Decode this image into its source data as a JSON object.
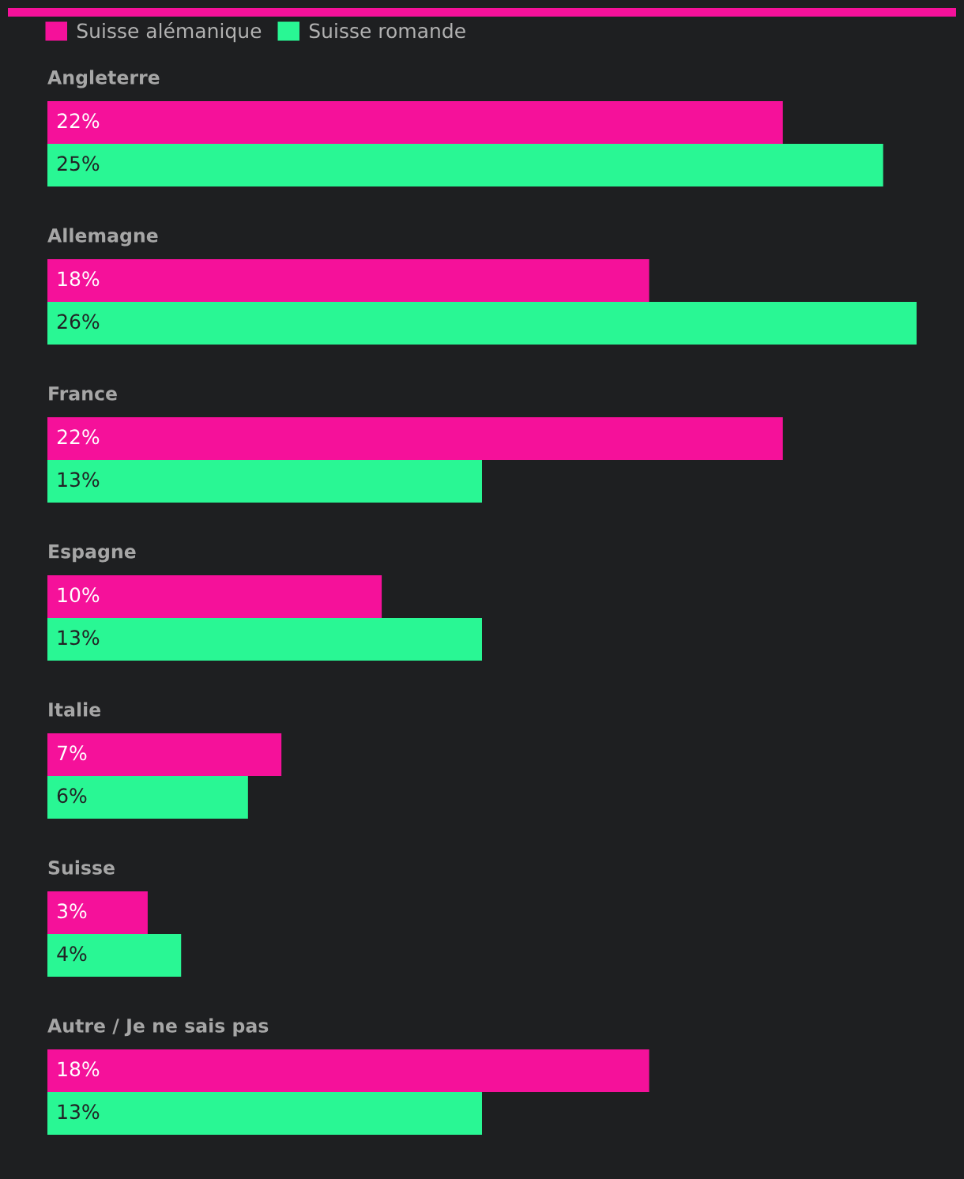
{
  "chart_data": {
    "type": "bar",
    "orientation": "horizontal",
    "categories": [
      "Angleterre",
      "Allemagne",
      "France",
      "Espagne",
      "Italie",
      "Suisse",
      "Autre / Je ne sais pas"
    ],
    "series": [
      {
        "name": "Suisse alémanique",
        "color": "#f5119a",
        "values": [
          22,
          18,
          22,
          10,
          7,
          3,
          18
        ],
        "value_labels": [
          "22%",
          "18%",
          "22%",
          "10%",
          "7%",
          "3%",
          "18%"
        ]
      },
      {
        "name": "Suisse romande",
        "color": "#29f794",
        "values": [
          25,
          26,
          13,
          13,
          6,
          4,
          13
        ],
        "value_labels": [
          "25%",
          "26%",
          "13%",
          "13%",
          "6%",
          "4%",
          "13%"
        ]
      }
    ],
    "legend": "top left",
    "tick_labels": "y"
  }
}
